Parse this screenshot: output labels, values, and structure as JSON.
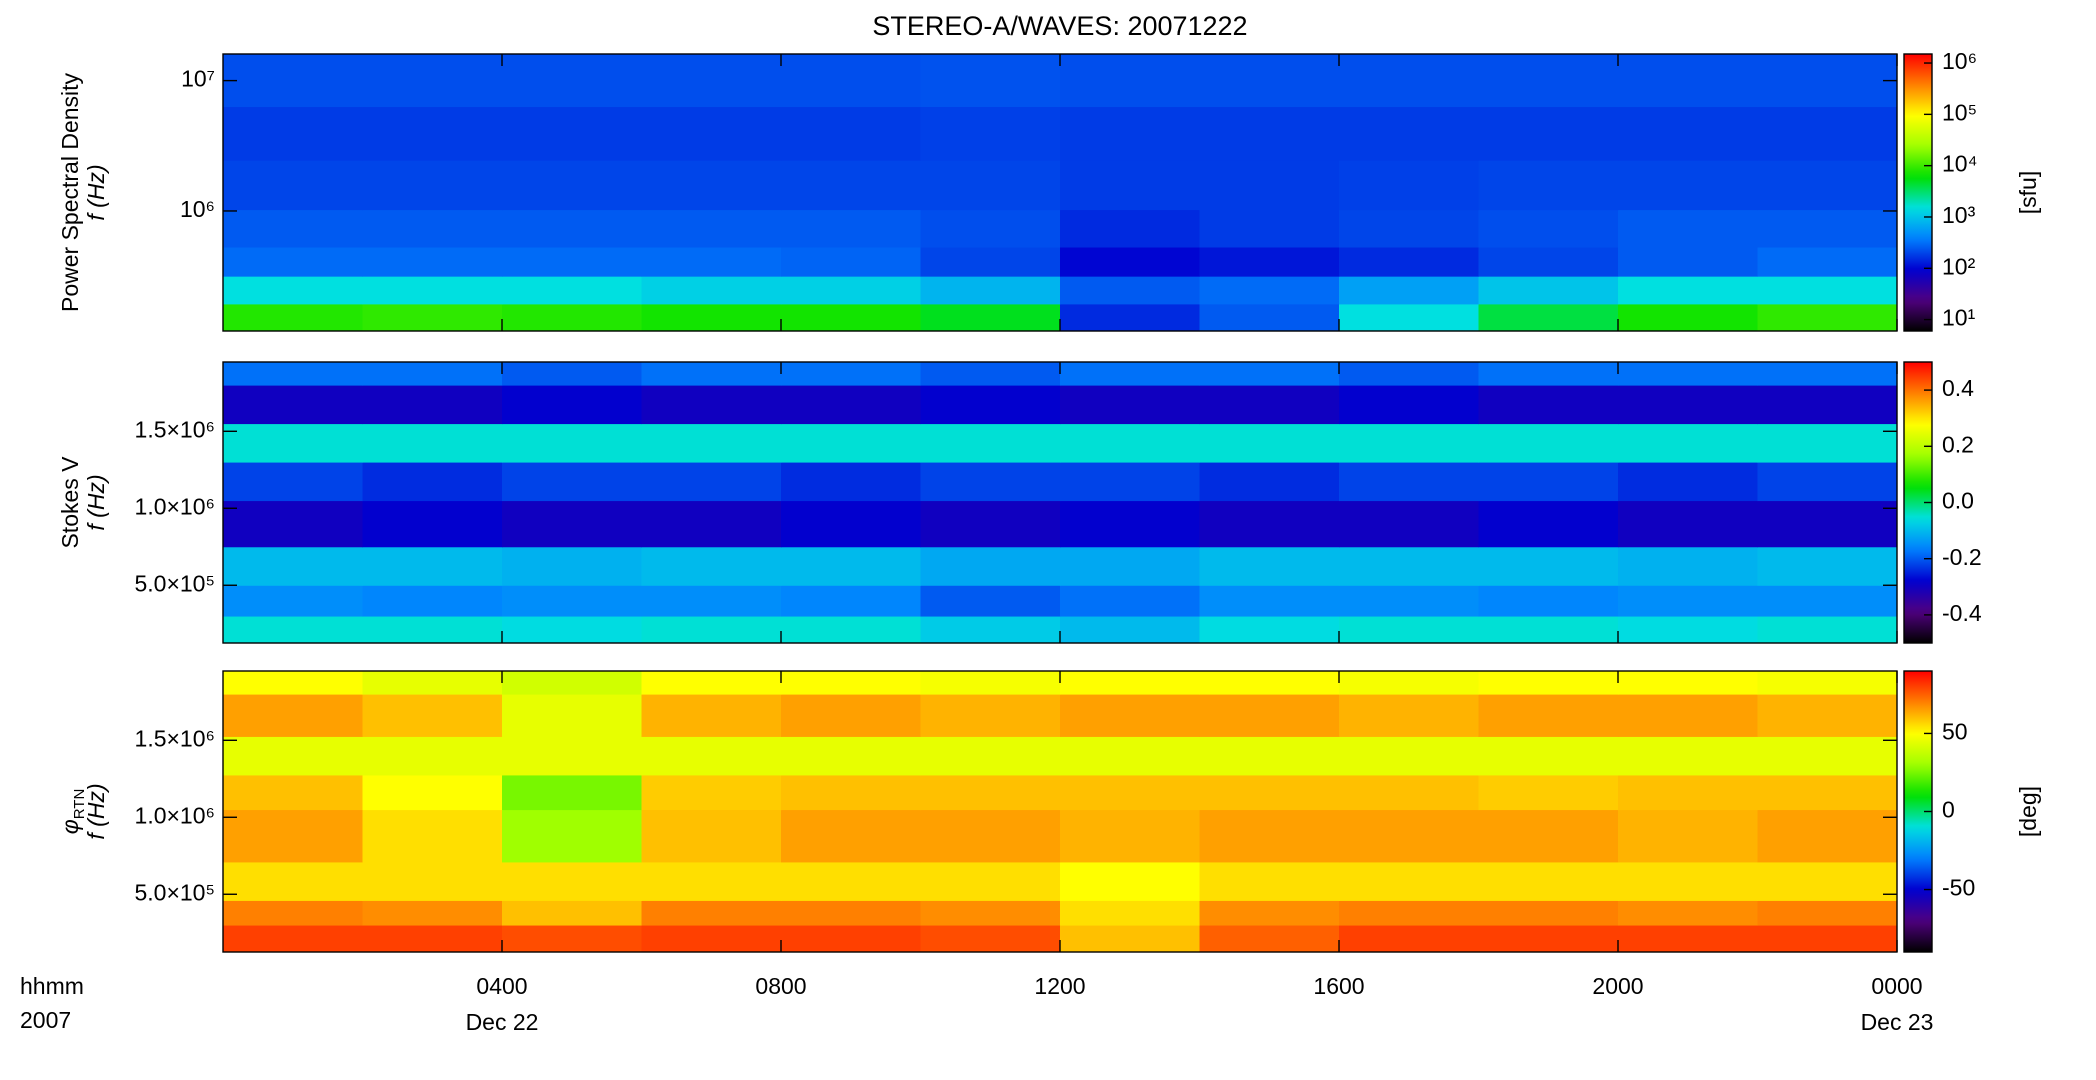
{
  "colormap": [
    "#000000",
    "#500080",
    "#0000d0",
    "#0080ff",
    "#00e0e0",
    "#00e000",
    "#a0ff00",
    "#ffff00",
    "#ff8000",
    "#ff0000"
  ],
  "title": "STEREO-A/WAVES: 20071222",
  "chart_data": [
    {
      "type": "heatmap",
      "ylabel_lines": [
        "Power Spectral Density",
        "f (Hz)"
      ],
      "ylog": true,
      "zlog": true,
      "x": [
        1,
        3,
        5,
        7,
        9,
        11,
        13,
        15,
        17,
        19,
        21,
        23
      ],
      "xlim": [
        0,
        24
      ],
      "xticks": [
        4,
        8,
        12,
        16,
        20,
        24
      ],
      "y": [
        150000,
        250000,
        400000,
        700000,
        1500000,
        4000000,
        10000000
      ],
      "ylim": [
        120000,
        16000000
      ],
      "yticks": [
        {
          "value": 1000000,
          "label": "10⁶"
        },
        {
          "value": 10000000,
          "label": "10⁷"
        }
      ],
      "values": [
        [
          8000,
          9000,
          8000,
          7000,
          7000,
          5000,
          150,
          250,
          1500,
          4000,
          7000,
          9000
        ],
        [
          1500,
          1500,
          1500,
          1200,
          1200,
          800,
          250,
          300,
          600,
          1000,
          1500,
          1500
        ],
        [
          300,
          300,
          300,
          300,
          280,
          200,
          100,
          120,
          150,
          200,
          250,
          300
        ],
        [
          250,
          250,
          250,
          250,
          250,
          220,
          150,
          180,
          200,
          220,
          250,
          250
        ],
        [
          200,
          200,
          200,
          200,
          200,
          200,
          180,
          180,
          190,
          200,
          200,
          200
        ],
        [
          180,
          180,
          180,
          180,
          180,
          190,
          180,
          180,
          180,
          180,
          180,
          180
        ],
        [
          220,
          220,
          220,
          220,
          220,
          230,
          220,
          220,
          220,
          220,
          220,
          220
        ]
      ],
      "zlim": [
        6,
        1500000
      ],
      "zticks": [
        {
          "value": 10,
          "label": "10¹"
        },
        {
          "value": 100,
          "label": "10²"
        },
        {
          "value": 1000,
          "label": "10³"
        },
        {
          "value": 10000,
          "label": "10⁴"
        },
        {
          "value": 100000,
          "label": "10⁵"
        },
        {
          "value": 1000000,
          "label": "10⁶"
        }
      ],
      "zlabel": "[sfu]"
    },
    {
      "type": "heatmap",
      "ylabel_lines": [
        "Stokes V",
        "f (Hz)"
      ],
      "ylog": false,
      "zlog": false,
      "x": [
        1,
        3,
        5,
        7,
        9,
        11,
        13,
        15,
        17,
        19,
        21,
        23
      ],
      "xlim": [
        0,
        24
      ],
      "xticks": [
        4,
        8,
        12,
        16,
        20,
        24
      ],
      "y": [
        200000,
        400000,
        600000,
        900000,
        1200000,
        1400000,
        1700000,
        1900000
      ],
      "ylim": [
        125000,
        1950000
      ],
      "yticks": [
        {
          "value": 500000,
          "label": "5.0×10⁵"
        },
        {
          "value": 1000000,
          "label": "1.0×10⁶"
        },
        {
          "value": 1500000,
          "label": "1.5×10⁶"
        }
      ],
      "values": [
        [
          -0.05,
          -0.05,
          -0.06,
          -0.05,
          -0.05,
          -0.08,
          -0.1,
          -0.06,
          -0.05,
          -0.05,
          -0.06,
          -0.05
        ],
        [
          -0.15,
          -0.16,
          -0.15,
          -0.15,
          -0.16,
          -0.2,
          -0.18,
          -0.15,
          -0.15,
          -0.16,
          -0.15,
          -0.15
        ],
        [
          -0.1,
          -0.1,
          -0.11,
          -0.1,
          -0.1,
          -0.12,
          -0.12,
          -0.1,
          -0.1,
          -0.1,
          -0.11,
          -0.1
        ],
        [
          -0.3,
          -0.28,
          -0.3,
          -0.3,
          -0.28,
          -0.3,
          -0.28,
          -0.3,
          -0.3,
          -0.28,
          -0.3,
          -0.3
        ],
        [
          -0.22,
          -0.24,
          -0.22,
          -0.22,
          -0.24,
          -0.22,
          -0.22,
          -0.24,
          -0.22,
          -0.22,
          -0.24,
          -0.22
        ],
        [
          -0.05,
          -0.05,
          -0.05,
          -0.05,
          -0.05,
          -0.05,
          -0.05,
          -0.05,
          -0.05,
          -0.05,
          -0.05,
          -0.05
        ],
        [
          -0.3,
          -0.3,
          -0.28,
          -0.3,
          -0.3,
          -0.28,
          -0.3,
          -0.3,
          -0.28,
          -0.3,
          -0.3,
          -0.3
        ],
        [
          -0.18,
          -0.18,
          -0.2,
          -0.18,
          -0.18,
          -0.2,
          -0.18,
          -0.18,
          -0.2,
          -0.18,
          -0.18,
          -0.18
        ]
      ],
      "zlim": [
        -0.5,
        0.5
      ],
      "zticks": [
        -0.4,
        -0.2,
        {
          "value": 0,
          "label": "0.0"
        },
        0.2,
        0.4
      ]
    },
    {
      "type": "heatmap",
      "ylabel_lines": [
        "φ",
        "f (Hz)"
      ],
      "ylabel_subscript": "RTN",
      "ylog": false,
      "zlog": false,
      "x": [
        1,
        3,
        5,
        7,
        9,
        11,
        13,
        15,
        17,
        19,
        21,
        23
      ],
      "xlim": [
        0,
        24
      ],
      "xticks": [
        {
          "value": 4,
          "label": "0400"
        },
        {
          "value": 8,
          "label": "0800"
        },
        {
          "value": 12,
          "label": "1200"
        },
        {
          "value": 16,
          "label": "1600"
        },
        {
          "value": 20,
          "label": "2000"
        },
        {
          "value": 24,
          "label": "0000"
        }
      ],
      "date_labels": [
        {
          "value": 4,
          "label": "Dec 22"
        },
        {
          "value": 24,
          "label": "Dec 23"
        }
      ],
      "xlabel_lines": [
        "hhmm",
        "2007"
      ],
      "y": [
        200000,
        400000,
        520000,
        900000,
        1200000,
        1350000,
        1700000,
        1900000
      ],
      "ylim": [
        125000,
        1950000
      ],
      "yticks": [
        {
          "value": 500000,
          "label": "5.0×10⁵"
        },
        {
          "value": 1000000,
          "label": "1.0×10⁶"
        },
        {
          "value": 1500000,
          "label": "1.5×10⁶"
        }
      ],
      "values": [
        [
          80,
          80,
          78,
          80,
          80,
          78,
          60,
          75,
          80,
          80,
          80,
          80
        ],
        [
          70,
          68,
          60,
          70,
          70,
          68,
          55,
          68,
          70,
          70,
          68,
          70
        ],
        [
          55,
          55,
          55,
          55,
          55,
          55,
          50,
          55,
          55,
          55,
          55,
          55
        ],
        [
          65,
          55,
          30,
          60,
          65,
          65,
          62,
          65,
          65,
          65,
          62,
          65
        ],
        [
          60,
          50,
          25,
          58,
          60,
          60,
          60,
          60,
          60,
          58,
          60,
          60
        ],
        [
          45,
          45,
          45,
          45,
          45,
          45,
          45,
          45,
          45,
          45,
          45,
          45
        ],
        [
          65,
          60,
          45,
          62,
          65,
          62,
          65,
          65,
          62,
          65,
          65,
          62
        ],
        [
          50,
          45,
          40,
          50,
          50,
          48,
          50,
          50,
          48,
          50,
          50,
          48
        ]
      ],
      "zlim": [
        -90,
        90
      ],
      "zticks": [
        -50,
        0,
        50
      ],
      "zlabel": "[deg]"
    }
  ]
}
